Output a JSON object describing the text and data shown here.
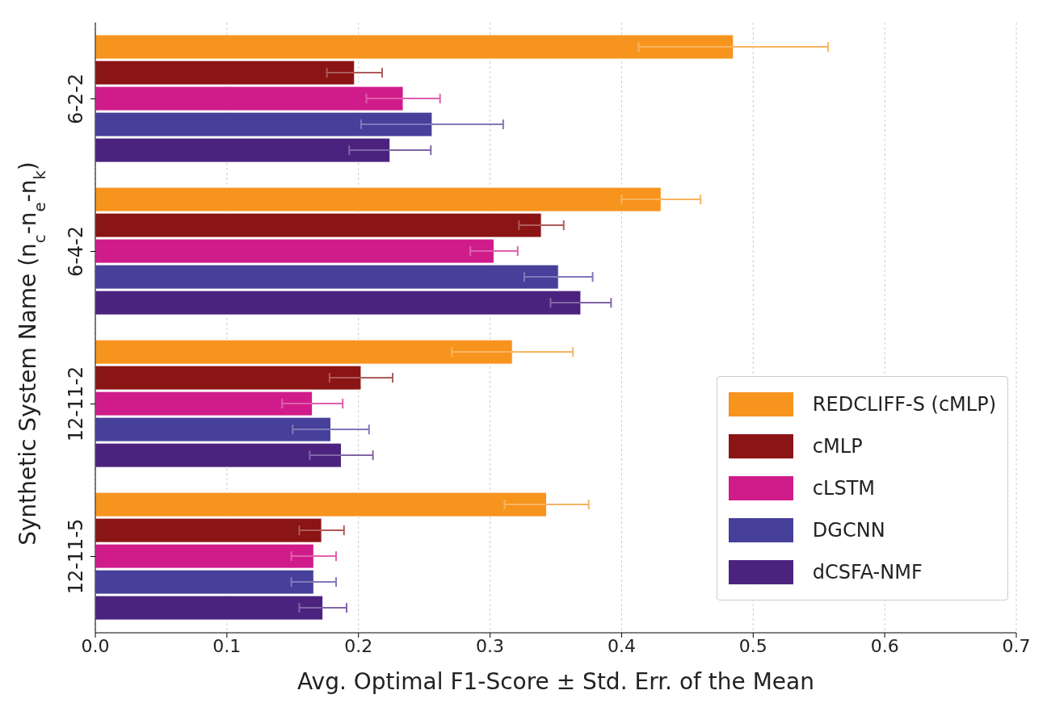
{
  "chart_data": {
    "type": "bar",
    "orientation": "horizontal",
    "xlabel": "Avg. Optimal F1-Score ± Std. Err. of the Mean",
    "ylabel": "Synthetic System Name (n$_{c}$-n$_{e}$-n$_{k}$)",
    "categories": [
      "6-2-2",
      "6-4-2",
      "12-11-2",
      "12-11-5"
    ],
    "series": [
      {
        "name": "REDCLIFF-S (cMLP)",
        "color": "#f7941d",
        "values": [
          0.485,
          0.43,
          0.317,
          0.343
        ],
        "errors": [
          0.072,
          0.03,
          0.046,
          0.032
        ]
      },
      {
        "name": "cMLP",
        "color": "#8b1414",
        "values": [
          0.197,
          0.339,
          0.202,
          0.172
        ],
        "errors": [
          0.021,
          0.017,
          0.024,
          0.017
        ]
      },
      {
        "name": "cLSTM",
        "color": "#d01c8b",
        "values": [
          0.234,
          0.303,
          0.165,
          0.166
        ],
        "errors": [
          0.028,
          0.018,
          0.023,
          0.017
        ]
      },
      {
        "name": "DGCNN",
        "color": "#46409a",
        "values": [
          0.256,
          0.352,
          0.179,
          0.166
        ],
        "errors": [
          0.054,
          0.026,
          0.029,
          0.017
        ]
      },
      {
        "name": "dCSFA-NMF",
        "color": "#4b237f",
        "values": [
          0.224,
          0.369,
          0.187,
          0.173
        ],
        "errors": [
          0.031,
          0.023,
          0.024,
          0.018
        ]
      }
    ],
    "xlim": [
      0,
      0.7
    ],
    "xticks": [
      {
        "value": 0,
        "label": "0.0"
      },
      0.1,
      0.2,
      0.3,
      0.4,
      0.5,
      0.6,
      0.7
    ],
    "grid": "x",
    "legend": "bottom right"
  }
}
